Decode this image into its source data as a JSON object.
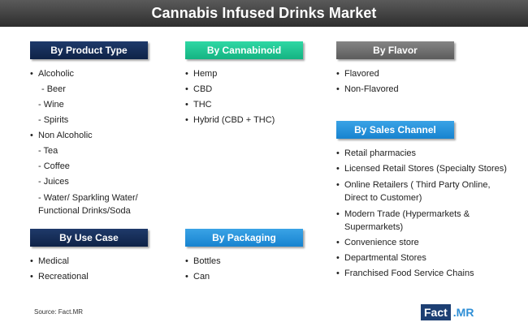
{
  "title": "Cannabis Infused Drinks Market",
  "source": "Source: Fact.MR",
  "logo": {
    "part1": "Fact",
    "part2": ".MR"
  },
  "colors": {
    "navy": "#14294f",
    "teal": "#22c793",
    "gray": "#707070",
    "blue": "#2996dd",
    "title_bg": "#444444"
  },
  "product_type": {
    "heading": "By Product Type",
    "items": [
      "Alcoholic",
      "- Beer",
      "- Wine",
      "- Spirits",
      "Non Alcoholic",
      "- Tea",
      "- Coffee",
      "- Juices",
      "- Water/ Sparkling Water/",
      "Functional Drinks/Soda"
    ]
  },
  "cannabinoid": {
    "heading": "By Cannabinoid",
    "items": [
      "Hemp",
      "CBD",
      "THC",
      "Hybrid (CBD + THC)"
    ]
  },
  "flavor": {
    "heading": "By Flavor",
    "items": [
      "Flavored",
      "Non-Flavored"
    ]
  },
  "sales_channel": {
    "heading": "By Sales Channel",
    "items": [
      "Retail pharmacies",
      "Licensed Retail Stores (Specialty Stores)",
      "Online Retailers ( Third Party Online,",
      "Direct to Customer)",
      "Modern Trade (Hypermarkets &",
      "Supermarkets)",
      "Convenience store",
      "Departmental Stores",
      "Franchised Food Service Chains"
    ]
  },
  "use_case": {
    "heading": "By Use Case",
    "items": [
      "Medical",
      "Recreational"
    ]
  },
  "packaging": {
    "heading": "By Packaging",
    "items": [
      "Bottles",
      "Can"
    ]
  }
}
